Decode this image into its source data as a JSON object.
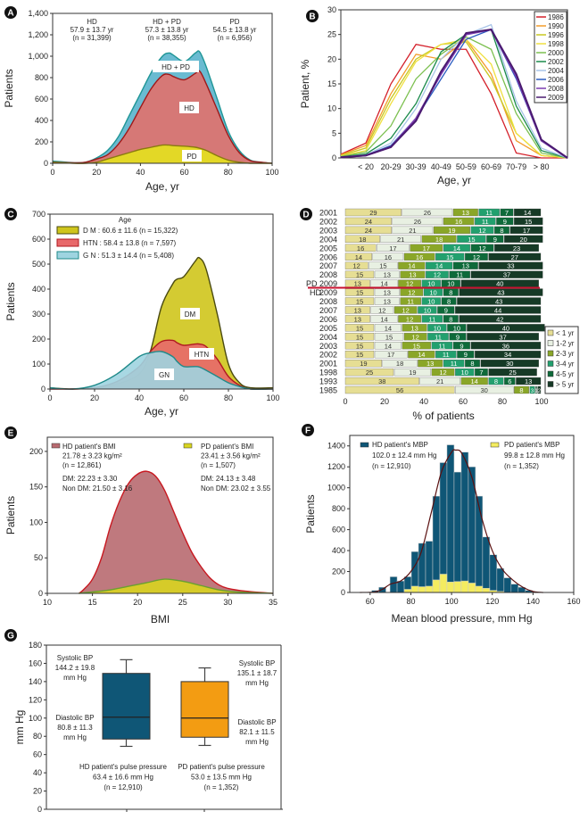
{
  "chart_data": [
    {
      "panel": "A",
      "type": "area",
      "xlabel": "Age, yr",
      "ylabel": "Patients",
      "xlim": [
        0,
        100
      ],
      "ylim": [
        0,
        1400
      ],
      "xticks": [
        "0",
        "20",
        "40",
        "60",
        "80",
        "100"
      ],
      "yticks": [
        "0",
        "200",
        "400",
        "600",
        "800",
        "1,000",
        "1,200",
        "1,400"
      ],
      "x": [
        0,
        10,
        15,
        20,
        25,
        30,
        35,
        40,
        45,
        50,
        53,
        55,
        60,
        65,
        67,
        70,
        75,
        80,
        85,
        90,
        95,
        100
      ],
      "series": [
        {
          "name": "HD + PD",
          "fill": "#5ab4cc",
          "line": "#1f9696",
          "values": [
            20,
            5,
            10,
            50,
            120,
            250,
            450,
            650,
            850,
            1000,
            1030,
            1010,
            950,
            1030,
            1040,
            900,
            600,
            300,
            120,
            30,
            10,
            0
          ]
        },
        {
          "name": "HD",
          "fill": "#e2716b",
          "line": "#a01818",
          "values": [
            10,
            5,
            10,
            40,
            80,
            180,
            330,
            520,
            700,
            820,
            830,
            810,
            780,
            840,
            860,
            740,
            500,
            260,
            100,
            25,
            10,
            0
          ]
        },
        {
          "name": "PD",
          "fill": "#e4e21e",
          "line": "#8a7a10",
          "values": [
            10,
            0,
            0,
            10,
            40,
            70,
            100,
            130,
            150,
            170,
            170,
            165,
            160,
            150,
            140,
            120,
            70,
            30,
            10,
            0,
            0,
            0
          ]
        }
      ],
      "annotations": [
        [
          "HD",
          "57.9 ± 13.7 yr",
          "(n = 31,399)"
        ],
        [
          "HD + PD",
          "57.3 ± 13.8 yr",
          "(n = 38,355)"
        ],
        [
          "PD",
          "54.5 ± 13.8 yr",
          "(n = 6,956)"
        ]
      ],
      "series_labels": [
        "HD + PD",
        "HD",
        "PD"
      ]
    },
    {
      "panel": "B",
      "type": "line",
      "xlabel": "Age, yr",
      "ylabel": "Patient, %",
      "ylim": [
        0,
        30
      ],
      "yticks": [
        "0",
        "5",
        "10",
        "15",
        "20",
        "25",
        "30"
      ],
      "categories": [
        "< 20",
        "20-29",
        "30-39",
        "40-49",
        "50-59",
        "60-69",
        "70-79",
        "> 80"
      ],
      "legend": "top-right",
      "series": [
        {
          "name": "1986",
          "color": "#d4202a",
          "values": [
            3,
            15,
            23,
            22,
            22,
            13,
            1,
            0
          ]
        },
        {
          "name": "1990",
          "color": "#f39c2b",
          "values": [
            2.5,
            13,
            21,
            20,
            24,
            17,
            3.5,
            0.5
          ]
        },
        {
          "name": "1996",
          "color": "#c8c820",
          "values": [
            2,
            12,
            20,
            23,
            23.5,
            16,
            5,
            0.5
          ]
        },
        {
          "name": "1998",
          "color": "#f0e040",
          "values": [
            1.5,
            11,
            19.5,
            23,
            24,
            19,
            5,
            0.5
          ]
        },
        {
          "name": "2000",
          "color": "#7cc050",
          "values": [
            1.2,
            6.5,
            16,
            21,
            24.5,
            22,
            9,
            1
          ]
        },
        {
          "name": "2002",
          "color": "#1a8a4a",
          "values": [
            0.8,
            4,
            11,
            21.5,
            25,
            26,
            10.5,
            1.5
          ]
        },
        {
          "name": "2004",
          "color": "#a8c4e8",
          "values": [
            0.6,
            3,
            10,
            20,
            25,
            27,
            11.5,
            2
          ]
        },
        {
          "name": "2006",
          "color": "#2a5cc0",
          "values": [
            0.5,
            2.5,
            8,
            16,
            24,
            26,
            16,
            3.5
          ]
        },
        {
          "name": "2008",
          "color": "#7a3cb0",
          "values": [
            0.5,
            2.2,
            8,
            17,
            25,
            26,
            16.5,
            3.5
          ]
        },
        {
          "name": "2009",
          "color": "#4a1a70",
          "values": [
            0.5,
            2.2,
            7.5,
            17.5,
            25.3,
            26,
            17,
            3.7
          ]
        }
      ]
    },
    {
      "panel": "C",
      "type": "area",
      "xlabel": "Age, yr",
      "ylabel": "Patients",
      "xlim": [
        0,
        100
      ],
      "ylim": [
        0,
        700
      ],
      "xticks": [
        "0",
        "20",
        "40",
        "60",
        "80",
        "100"
      ],
      "yticks": [
        "0",
        "100",
        "200",
        "300",
        "400",
        "500",
        "600",
        "700"
      ],
      "legend_title": "Age",
      "x": [
        0,
        10,
        20,
        30,
        40,
        45,
        50,
        55,
        57,
        60,
        65,
        67,
        70,
        75,
        80,
        85,
        90,
        100
      ],
      "series": [
        {
          "name": "D M :  60.6 ± 11.6 (n = 15,322)",
          "label": "DM",
          "fill": "#cfc51c",
          "line": "#4a4a10",
          "values": [
            5,
            0,
            5,
            20,
            60,
            150,
            330,
            420,
            440,
            450,
            510,
            525,
            480,
            300,
            100,
            25,
            5,
            5
          ]
        },
        {
          "name": "HTN :  58.4 ± 13.8 (n = 7,597)",
          "label": "HTN",
          "fill": "#e8686a",
          "line": "#b01820",
          "values": [
            0,
            0,
            5,
            30,
            90,
            150,
            190,
            195,
            185,
            175,
            180,
            180,
            170,
            120,
            50,
            15,
            0,
            0
          ]
        },
        {
          "name": "G N :  51.3 ± 14.4 (n = 5,408)",
          "label": "GN",
          "fill": "#9ed4e0",
          "line": "#1f8a8a",
          "values": [
            5,
            0,
            15,
            60,
            130,
            145,
            150,
            130,
            110,
            90,
            90,
            88,
            75,
            50,
            25,
            10,
            0,
            0
          ]
        }
      ]
    },
    {
      "panel": "D",
      "type": "stacked-bar-horizontal",
      "xlabel": "% of patients",
      "xlim": [
        0,
        100
      ],
      "xticks": [
        "0",
        "20",
        "40",
        "60",
        "80",
        "100"
      ],
      "legend": "bottom-right",
      "segments": [
        {
          "name": "< 1 yr",
          "color": "#e6de94"
        },
        {
          "name": "1-2 yr",
          "color": "#e8f0e2"
        },
        {
          "name": "2-3 yr",
          "color": "#8aa628"
        },
        {
          "name": "3-4 yr",
          "color": "#22a06e"
        },
        {
          "name": "4-5 yr",
          "color": "#0e6a3a"
        },
        {
          "name": "> 5 yr",
          "color": "#163a26"
        }
      ],
      "group_labels": [
        "PD",
        "HD"
      ],
      "rows": [
        {
          "group": "PD",
          "year": "2001",
          "values": [
            29,
            26,
            13,
            11,
            7,
            14
          ]
        },
        {
          "group": "PD",
          "year": "2002",
          "values": [
            24,
            26,
            16,
            11,
            9,
            15
          ]
        },
        {
          "group": "PD",
          "year": "2003",
          "values": [
            24,
            21,
            19,
            12,
            8,
            17
          ]
        },
        {
          "group": "PD",
          "year": "2004",
          "values": [
            18,
            21,
            18,
            15,
            9,
            20
          ]
        },
        {
          "group": "PD",
          "year": "2005",
          "values": [
            16,
            17,
            17,
            14,
            12,
            23
          ]
        },
        {
          "group": "PD",
          "year": "2006",
          "values": [
            14,
            16,
            16,
            15,
            12,
            27
          ]
        },
        {
          "group": "PD",
          "year": "2007",
          "values": [
            12,
            15,
            14,
            14,
            13,
            33
          ]
        },
        {
          "group": "PD",
          "year": "2008",
          "values": [
            15,
            13,
            13,
            12,
            11,
            37
          ]
        },
        {
          "group": "PD",
          "year": "2009",
          "values": [
            13,
            14,
            12,
            10,
            10,
            40
          ]
        },
        {
          "group": "HD",
          "year": "2009",
          "values": [
            15,
            13,
            12,
            10,
            8,
            43
          ]
        },
        {
          "group": "HD",
          "year": "2008",
          "values": [
            15,
            13,
            11,
            10,
            8,
            43
          ]
        },
        {
          "group": "HD",
          "year": "2007",
          "values": [
            13,
            12,
            12,
            10,
            9,
            44
          ]
        },
        {
          "group": "HD",
          "year": "2006",
          "values": [
            13,
            14,
            12,
            11,
            8,
            42
          ]
        },
        {
          "group": "HD",
          "year": "2005",
          "values": [
            15,
            14,
            13,
            10,
            10,
            40
          ]
        },
        {
          "group": "HD",
          "year": "2004",
          "values": [
            15,
            15,
            12,
            11,
            9,
            37
          ]
        },
        {
          "group": "HD",
          "year": "2003",
          "values": [
            15,
            14,
            15,
            11,
            9,
            36
          ]
        },
        {
          "group": "HD",
          "year": "2002",
          "values": [
            15,
            17,
            14,
            11,
            9,
            34
          ]
        },
        {
          "group": "HD",
          "year": "2001",
          "values": [
            19,
            18,
            13,
            11,
            8,
            30
          ]
        },
        {
          "group": "HD",
          "year": "1998",
          "values": [
            25,
            19,
            12,
            10,
            7,
            25
          ]
        },
        {
          "group": "HD",
          "year": "1993",
          "values": [
            38,
            21,
            14,
            8,
            6,
            13
          ]
        },
        {
          "group": "HD",
          "year": "1985",
          "values": [
            56,
            30,
            8,
            3,
            1,
            2
          ]
        }
      ]
    },
    {
      "panel": "E",
      "type": "area",
      "xlabel": "BMI",
      "ylabel": "Patients",
      "xlim": [
        10,
        35
      ],
      "ylim": [
        0,
        220
      ],
      "xticks": [
        "10",
        "15",
        "20",
        "25",
        "30",
        "35"
      ],
      "yticks": [
        "0",
        "50",
        "100",
        "150",
        "200"
      ],
      "series": [
        {
          "name": "HD patient's BMI",
          "fill": "#b86a70",
          "line": "#c81820",
          "x": [
            13.5,
            14,
            15,
            16,
            17,
            18,
            19,
            20,
            21,
            22,
            23,
            24,
            25,
            26,
            27,
            28,
            29,
            30,
            32,
            35
          ],
          "values": [
            0,
            5,
            20,
            50,
            95,
            130,
            155,
            168,
            172,
            165,
            145,
            115,
            85,
            58,
            38,
            22,
            12,
            7,
            3,
            0
          ],
          "text": [
            "HD patient's BMI",
            "21.78 ± 3.23 kg/m²",
            "(n = 12,861)",
            "DM: 22.23 ± 3.30",
            "Non DM: 21.50 ± 3.16"
          ]
        },
        {
          "name": "PD patient's BMI",
          "fill": "#d8d420",
          "line": "#6aa030",
          "x": [
            13.5,
            15,
            17,
            19,
            21,
            23,
            25,
            27,
            29,
            31,
            35
          ],
          "values": [
            0,
            2,
            5,
            10,
            15,
            20,
            17,
            11,
            5,
            2,
            0
          ],
          "text": [
            "PD patient's BMI",
            "23.41 ± 3.56 kg/m²",
            "(n = 1,507)",
            "DM: 24.13 ± 3.48",
            "Non DM: 23.02 ± 3.55"
          ]
        }
      ]
    },
    {
      "panel": "F",
      "type": "bar",
      "xlabel": "Mean  blood pressure, mm Hg",
      "ylabel": "Patients",
      "xlim": [
        50,
        160
      ],
      "ylim": [
        0,
        1500
      ],
      "xticks": [
        "60",
        "80",
        "100",
        "120",
        "140",
        "160"
      ],
      "yticks": [
        "0",
        "200",
        "400",
        "600",
        "800",
        "1000",
        "1200",
        "1400"
      ],
      "bin_width": 3.5,
      "series": [
        {
          "name": "HD patient's MBP",
          "color": "#0f5676",
          "line": "#5a1010",
          "x": [
            62.5,
            66,
            71.5,
            75,
            78.5,
            82,
            85.5,
            89,
            92.5,
            96,
            99.5,
            103,
            106.5,
            110,
            113.5,
            117,
            120.5,
            124,
            127.5,
            131,
            134.5,
            138
          ],
          "values": [
            20,
            50,
            150,
            110,
            150,
            390,
            470,
            490,
            920,
            1240,
            1410,
            1150,
            1340,
            1200,
            920,
            530,
            360,
            230,
            140,
            80,
            50,
            20
          ],
          "text": [
            "HD patient's MBP",
            "102.0 ± 12.4 mm Hg",
            "(n = 12,910)"
          ]
        },
        {
          "name": "PD patient's MBP",
          "color": "#f4ec60",
          "line": "#9a9a30",
          "x": [
            78.5,
            82,
            85.5,
            89,
            92.5,
            96,
            99.5,
            103,
            106.5,
            110,
            113.5,
            117,
            120.5,
            124
          ],
          "values": [
            30,
            60,
            55,
            60,
            120,
            175,
            100,
            105,
            110,
            90,
            60,
            40,
            20,
            10
          ],
          "text": [
            "PD patient's MBP",
            "99.8 ± 12.8 mm Hg",
            "(n = 1,352)"
          ]
        }
      ],
      "curve": {
        "x": [
          55,
          62,
          66,
          70,
          75,
          80,
          85,
          90,
          95,
          100,
          102,
          105,
          110,
          115,
          120,
          125,
          130,
          135,
          140,
          145
        ],
        "values": [
          0,
          5,
          30,
          80,
          110,
          200,
          380,
          760,
          1150,
          1340,
          1360,
          1330,
          1100,
          700,
          400,
          220,
          120,
          50,
          10,
          0
        ]
      }
    },
    {
      "panel": "G",
      "type": "box",
      "ylabel": "mm Hg",
      "ylim": [
        0,
        180
      ],
      "yticks": [
        "0",
        "20",
        "40",
        "60",
        "80",
        "100",
        "120",
        "140",
        "160",
        "180"
      ],
      "boxes": [
        {
          "name": "HD",
          "color": "#0f5676",
          "whisker_low": 69,
          "q1": 77,
          "median": 101,
          "q3": 149,
          "whisker_high": 164,
          "systolic": [
            "Systolic BP",
            "144.2 ± 19.8",
            "mm Hg"
          ],
          "diastolic": [
            "Diastolic BP",
            "80.8 ± 11.3",
            "mm Hg"
          ],
          "pulse": [
            "HD patient's pulse pressure",
            "63.4 ± 16.6 mm Hg",
            "(n = 12,910)"
          ]
        },
        {
          "name": "PD",
          "color": "#f39c12",
          "whisker_low": 70,
          "q1": 79,
          "median": 100,
          "q3": 140,
          "whisker_high": 155,
          "systolic": [
            "Systolic BP",
            "135.1 ± 18.7",
            "mm Hg"
          ],
          "diastolic": [
            "Diastolic BP",
            "82.1 ± 11.5",
            "mm Hg"
          ],
          "pulse": [
            "PD patient's pulse pressure",
            "53.0 ± 13.5 mm Hg",
            "(n = 1,352)"
          ]
        }
      ]
    }
  ]
}
